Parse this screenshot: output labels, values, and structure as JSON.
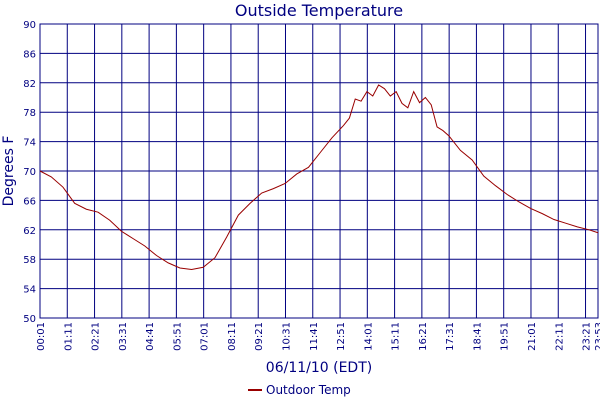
{
  "chart_data": {
    "type": "line",
    "title": "Outside Temperature",
    "y_label": "Degrees F",
    "x_label": "06/11/10 (EDT)",
    "x": [
      1,
      30,
      60,
      90,
      120,
      150,
      180,
      210,
      240,
      270,
      300,
      330,
      360,
      390,
      420,
      450,
      480,
      510,
      540,
      570,
      600,
      630,
      660,
      690,
      720,
      750,
      780,
      795,
      810,
      825,
      840,
      855,
      870,
      885,
      900,
      915,
      930,
      945,
      960,
      975,
      990,
      1005,
      1020,
      1035,
      1050,
      1080,
      1110,
      1140,
      1170,
      1200,
      1230,
      1260,
      1290,
      1320,
      1350,
      1380,
      1410,
      1433
    ],
    "series": [
      {
        "name": "Outdoor Temp",
        "color": "#990000",
        "values": [
          70,
          69.2,
          67.8,
          65.6,
          64.8,
          64.4,
          63.3,
          61.8,
          60.8,
          59.8,
          58.5,
          57.5,
          56.8,
          56.6,
          56.9,
          58.2,
          61,
          64,
          65.6,
          67,
          67.6,
          68.3,
          69.6,
          70.5,
          72.5,
          74.5,
          76.2,
          77.2,
          79.8,
          79.5,
          80.8,
          80.2,
          81.7,
          81.2,
          80.2,
          80.8,
          79.2,
          78.6,
          80.8,
          79.3,
          80,
          79,
          76,
          75.5,
          74.8,
          72.8,
          71.5,
          69.3,
          68,
          66.8,
          65.8,
          64.9,
          64.2,
          63.4,
          62.9,
          62.4,
          62,
          61.6
        ]
      }
    ],
    "xlim": [
      1,
      1433
    ],
    "xticks": [
      {
        "value": 1,
        "label": "00:01"
      },
      {
        "value": 71,
        "label": "01:11"
      },
      {
        "value": 141,
        "label": "02:21"
      },
      {
        "value": 211,
        "label": "03:31"
      },
      {
        "value": 281,
        "label": "04:41"
      },
      {
        "value": 351,
        "label": "05:51"
      },
      {
        "value": 421,
        "label": "07:01"
      },
      {
        "value": 491,
        "label": "08:11"
      },
      {
        "value": 561,
        "label": "09:21"
      },
      {
        "value": 631,
        "label": "10:31"
      },
      {
        "value": 701,
        "label": "11:41"
      },
      {
        "value": 771,
        "label": "12:51"
      },
      {
        "value": 841,
        "label": "14:01"
      },
      {
        "value": 911,
        "label": "15:11"
      },
      {
        "value": 981,
        "label": "16:21"
      },
      {
        "value": 1051,
        "label": "17:31"
      },
      {
        "value": 1121,
        "label": "18:41"
      },
      {
        "value": 1191,
        "label": "19:51"
      },
      {
        "value": 1261,
        "label": "21:01"
      },
      {
        "value": 1331,
        "label": "22:11"
      },
      {
        "value": 1401,
        "label": "23:21"
      },
      {
        "value": 1433,
        "label": "23:53"
      }
    ],
    "ylim": [
      50,
      90
    ],
    "yticks": [
      50,
      54,
      58,
      62,
      66,
      70,
      74,
      78,
      82,
      86,
      90
    ],
    "grid": true
  }
}
